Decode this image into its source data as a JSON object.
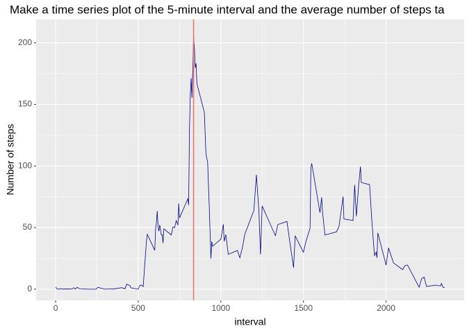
{
  "chart_data": {
    "type": "line",
    "title": "Make a time series plot of the 5-minute interval and the average number of steps ta",
    "x_label": "interval",
    "y_label": "Number of steps",
    "x": [
      0,
      10,
      20,
      30,
      40,
      50,
      55,
      100,
      110,
      120,
      130,
      145,
      200,
      230,
      245,
      255,
      300,
      330,
      345,
      400,
      420,
      430,
      440,
      450,
      455,
      500,
      505,
      510,
      520,
      530,
      550,
      555,
      600,
      605,
      610,
      615,
      620,
      625,
      630,
      640,
      645,
      650,
      655,
      700,
      710,
      720,
      730,
      740,
      745,
      750,
      800,
      805,
      810,
      815,
      820,
      825,
      830,
      835,
      840,
      845,
      850,
      855,
      900,
      910,
      920,
      930,
      935,
      940,
      945,
      950,
      1000,
      1015,
      1020,
      1030,
      1045,
      1100,
      1115,
      1130,
      1145,
      1200,
      1215,
      1230,
      1240,
      1250,
      1330,
      1345,
      1400,
      1420,
      1440,
      1450,
      1500,
      1515,
      1540,
      1545,
      1550,
      1600,
      1610,
      1615,
      1630,
      1700,
      1715,
      1740,
      1745,
      1800,
      1810,
      1820,
      1835,
      1845,
      1850,
      1900,
      1915,
      1930,
      1940,
      1945,
      1950,
      2000,
      2015,
      2030,
      2045,
      2100,
      2115,
      2130,
      2200,
      2215,
      2230,
      2245,
      2300,
      2330,
      2335,
      2345,
      2355
    ],
    "series": [
      {
        "name": "steps",
        "color": "#00008B",
        "values": [
          1.7,
          0.1,
          0,
          0.5,
          0,
          0.3,
          0.1,
          0.3,
          1.2,
          0,
          1.5,
          0.4,
          0,
          0,
          0,
          1.5,
          0,
          0.4,
          0.1,
          1.2,
          0.3,
          4.1,
          3.5,
          3,
          1.1,
          0,
          1.6,
          3,
          3.3,
          2.1,
          39.5,
          44.5,
          31.5,
          49.3,
          53.8,
          63.5,
          50,
          47.1,
          52.2,
          44,
          44.2,
          37.4,
          49,
          44,
          50.5,
          49.9,
          55.7,
          52,
          69.5,
          57.8,
          73.4,
          68.2,
          129.4,
          157.5,
          171.2,
          155.4,
          177.3,
          206.2,
          195.9,
          179.6,
          183.4,
          167,
          143.5,
          109.6,
          103.3,
          66.2,
          45.2,
          24.8,
          38.8,
          34.9,
          40.6,
          52.7,
          38.9,
          44.3,
          28.3,
          31.4,
          25.5,
          33.5,
          44.6,
          63.9,
          92.8,
          64,
          28.3,
          67.6,
          43.4,
          52.5,
          55,
          36,
          17.5,
          43.2,
          30,
          38.8,
          49.5,
          98.7,
          102.1,
          62.1,
          74.5,
          63.2,
          44,
          46.6,
          50.9,
          75.1,
          57,
          55.8,
          84.7,
          59.3,
          85.9,
          99.5,
          86.6,
          84.9,
          53.4,
          27.3,
          30,
          25.5,
          45.7,
          19.6,
          33.5,
          27.3,
          21.3,
          15.9,
          19.2,
          19.6,
          1.6,
          8.5,
          9.8,
          2.2,
          3.3,
          2.6,
          4.7,
          1.6,
          1.1
        ]
      }
    ],
    "vline": {
      "value": 835,
      "color": "#E8776E"
    },
    "xlim": [
      -118,
      2473
    ],
    "xticks": [
      0,
      500,
      1000,
      1500,
      2000
    ],
    "ylim": [
      -9.1,
      219
    ],
    "yticks": [
      0,
      50,
      100,
      150,
      200
    ],
    "grid": true
  }
}
